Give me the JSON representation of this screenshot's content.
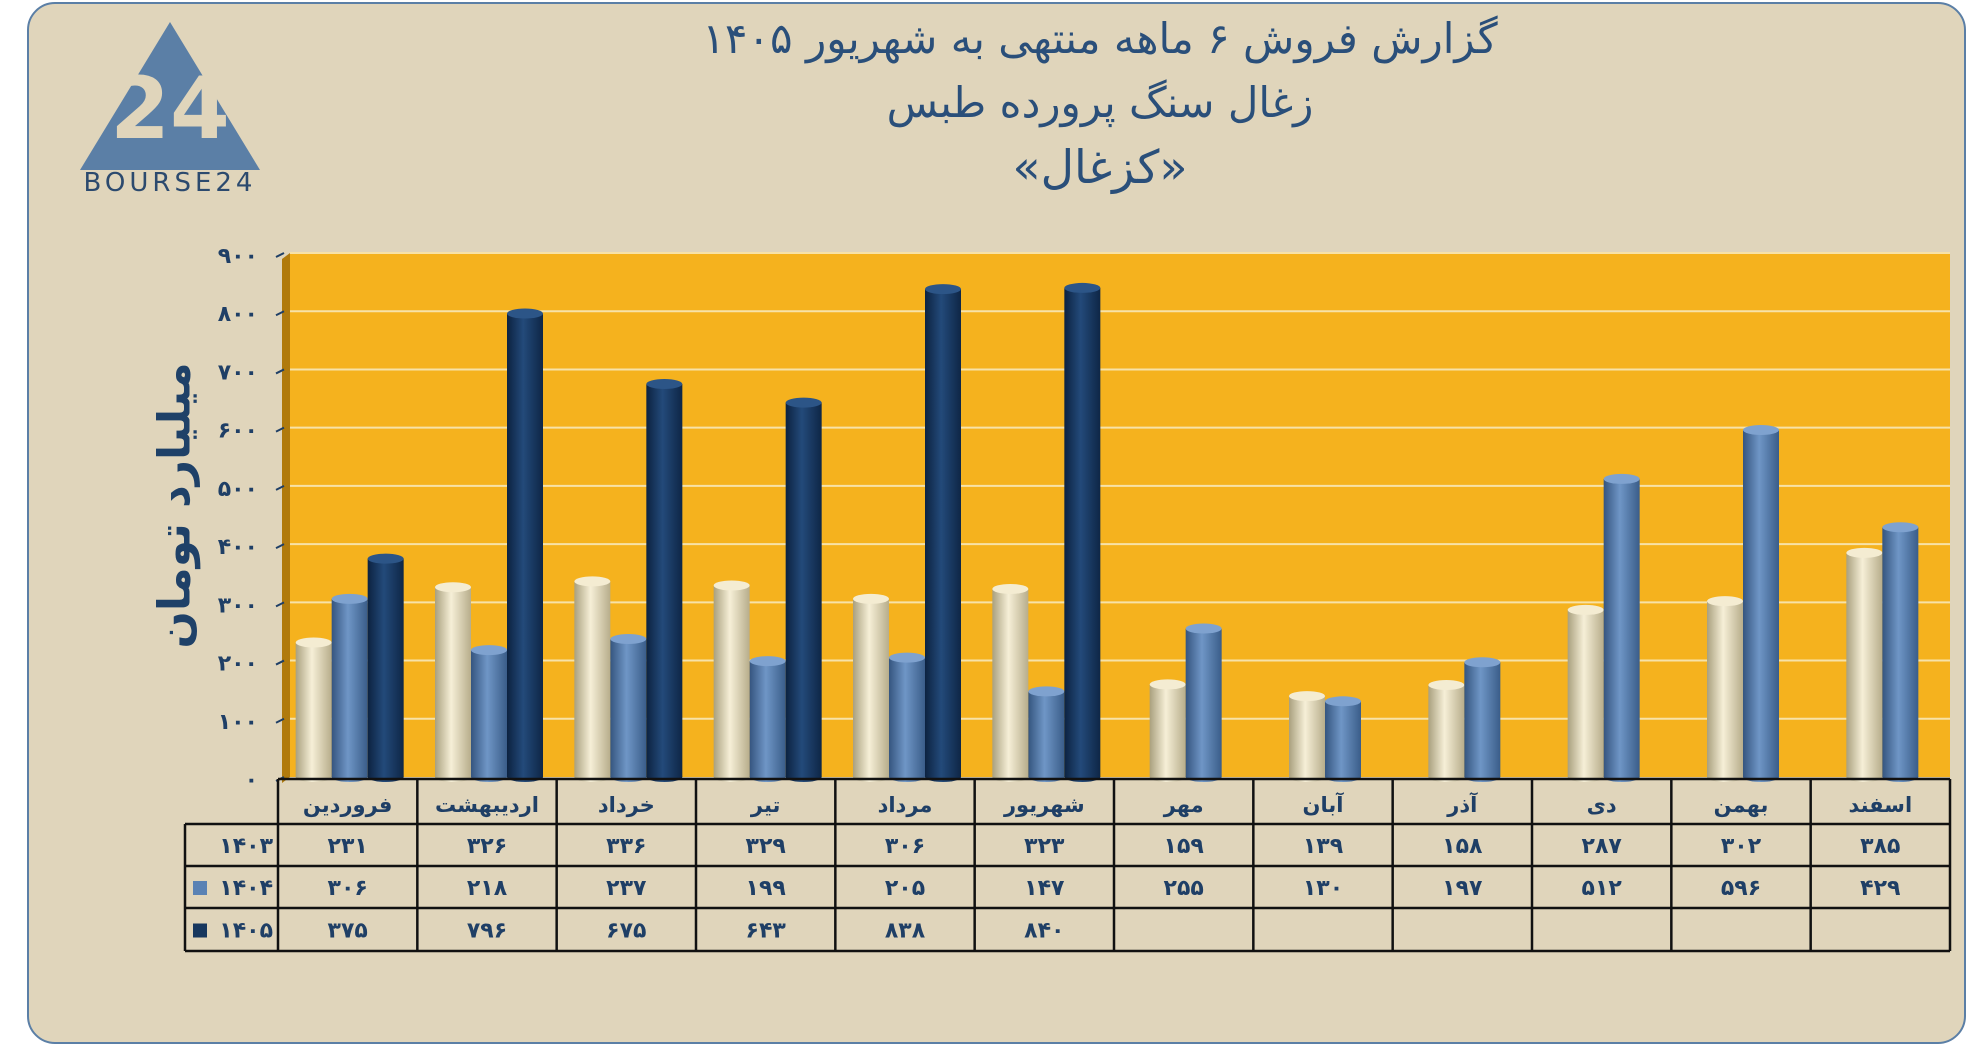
{
  "logo": {
    "brand_text": "BOURSE24",
    "mark": "24"
  },
  "title": {
    "line1": "گزارش  فروش ۶ ماهه منتهی به شهریور ۱۴۰۵",
    "line2": "زغال سنگ پرورده طبس",
    "line3": "«کزغال»"
  },
  "colors": {
    "background": "#e0d5bb",
    "plot_area": "#f5b21e",
    "series_1403": "#e6dcbc",
    "series_1404": "#5a82b4",
    "series_1405": "#17375e",
    "text": "#1f3f66"
  },
  "chart_data": {
    "type": "bar",
    "ylabel": "میلیارد تومان",
    "ylim": [
      0,
      900
    ],
    "yticks": [
      "۰",
      "۱۰۰",
      "۲۰۰",
      "۳۰۰",
      "۴۰۰",
      "۵۰۰",
      "۶۰۰",
      "۷۰۰",
      "۸۰۰",
      "۹۰۰"
    ],
    "categories": [
      "فروردین",
      "اردیبهشت",
      "خرداد",
      "تیر",
      "مرداد",
      "شهریور",
      "مهر",
      "آبان",
      "آذر",
      "دی",
      "بهمن",
      "اسفند"
    ],
    "series": [
      {
        "name": "۱۴۰۳",
        "values": [
          231,
          326,
          336,
          329,
          306,
          323,
          159,
          139,
          158,
          287,
          302,
          385
        ],
        "labels": [
          "۲۳۱",
          "۳۲۶",
          "۳۳۶",
          "۳۲۹",
          "۳۰۶",
          "۳۲۳",
          "۱۵۹",
          "۱۳۹",
          "۱۵۸",
          "۲۸۷",
          "۳۰۲",
          "۳۸۵"
        ]
      },
      {
        "name": "۱۴۰۴",
        "values": [
          306,
          218,
          237,
          199,
          205,
          147,
          255,
          130,
          197,
          512,
          596,
          429
        ],
        "labels": [
          "۳۰۶",
          "۲۱۸",
          "۲۳۷",
          "۱۹۹",
          "۲۰۵",
          "۱۴۷",
          "۲۵۵",
          "۱۳۰",
          "۱۹۷",
          "۵۱۲",
          "۵۹۶",
          "۴۲۹"
        ]
      },
      {
        "name": "۱۴۰۵",
        "values": [
          375,
          796,
          675,
          643,
          838,
          840,
          null,
          null,
          null,
          null,
          null,
          null
        ],
        "labels": [
          "۳۷۵",
          "۷۹۶",
          "۶۷۵",
          "۶۴۳",
          "۸۳۸",
          "۸۴۰",
          "",
          "",
          "",
          "",
          "",
          ""
        ]
      }
    ],
    "grid": true,
    "legend": "data-table"
  }
}
